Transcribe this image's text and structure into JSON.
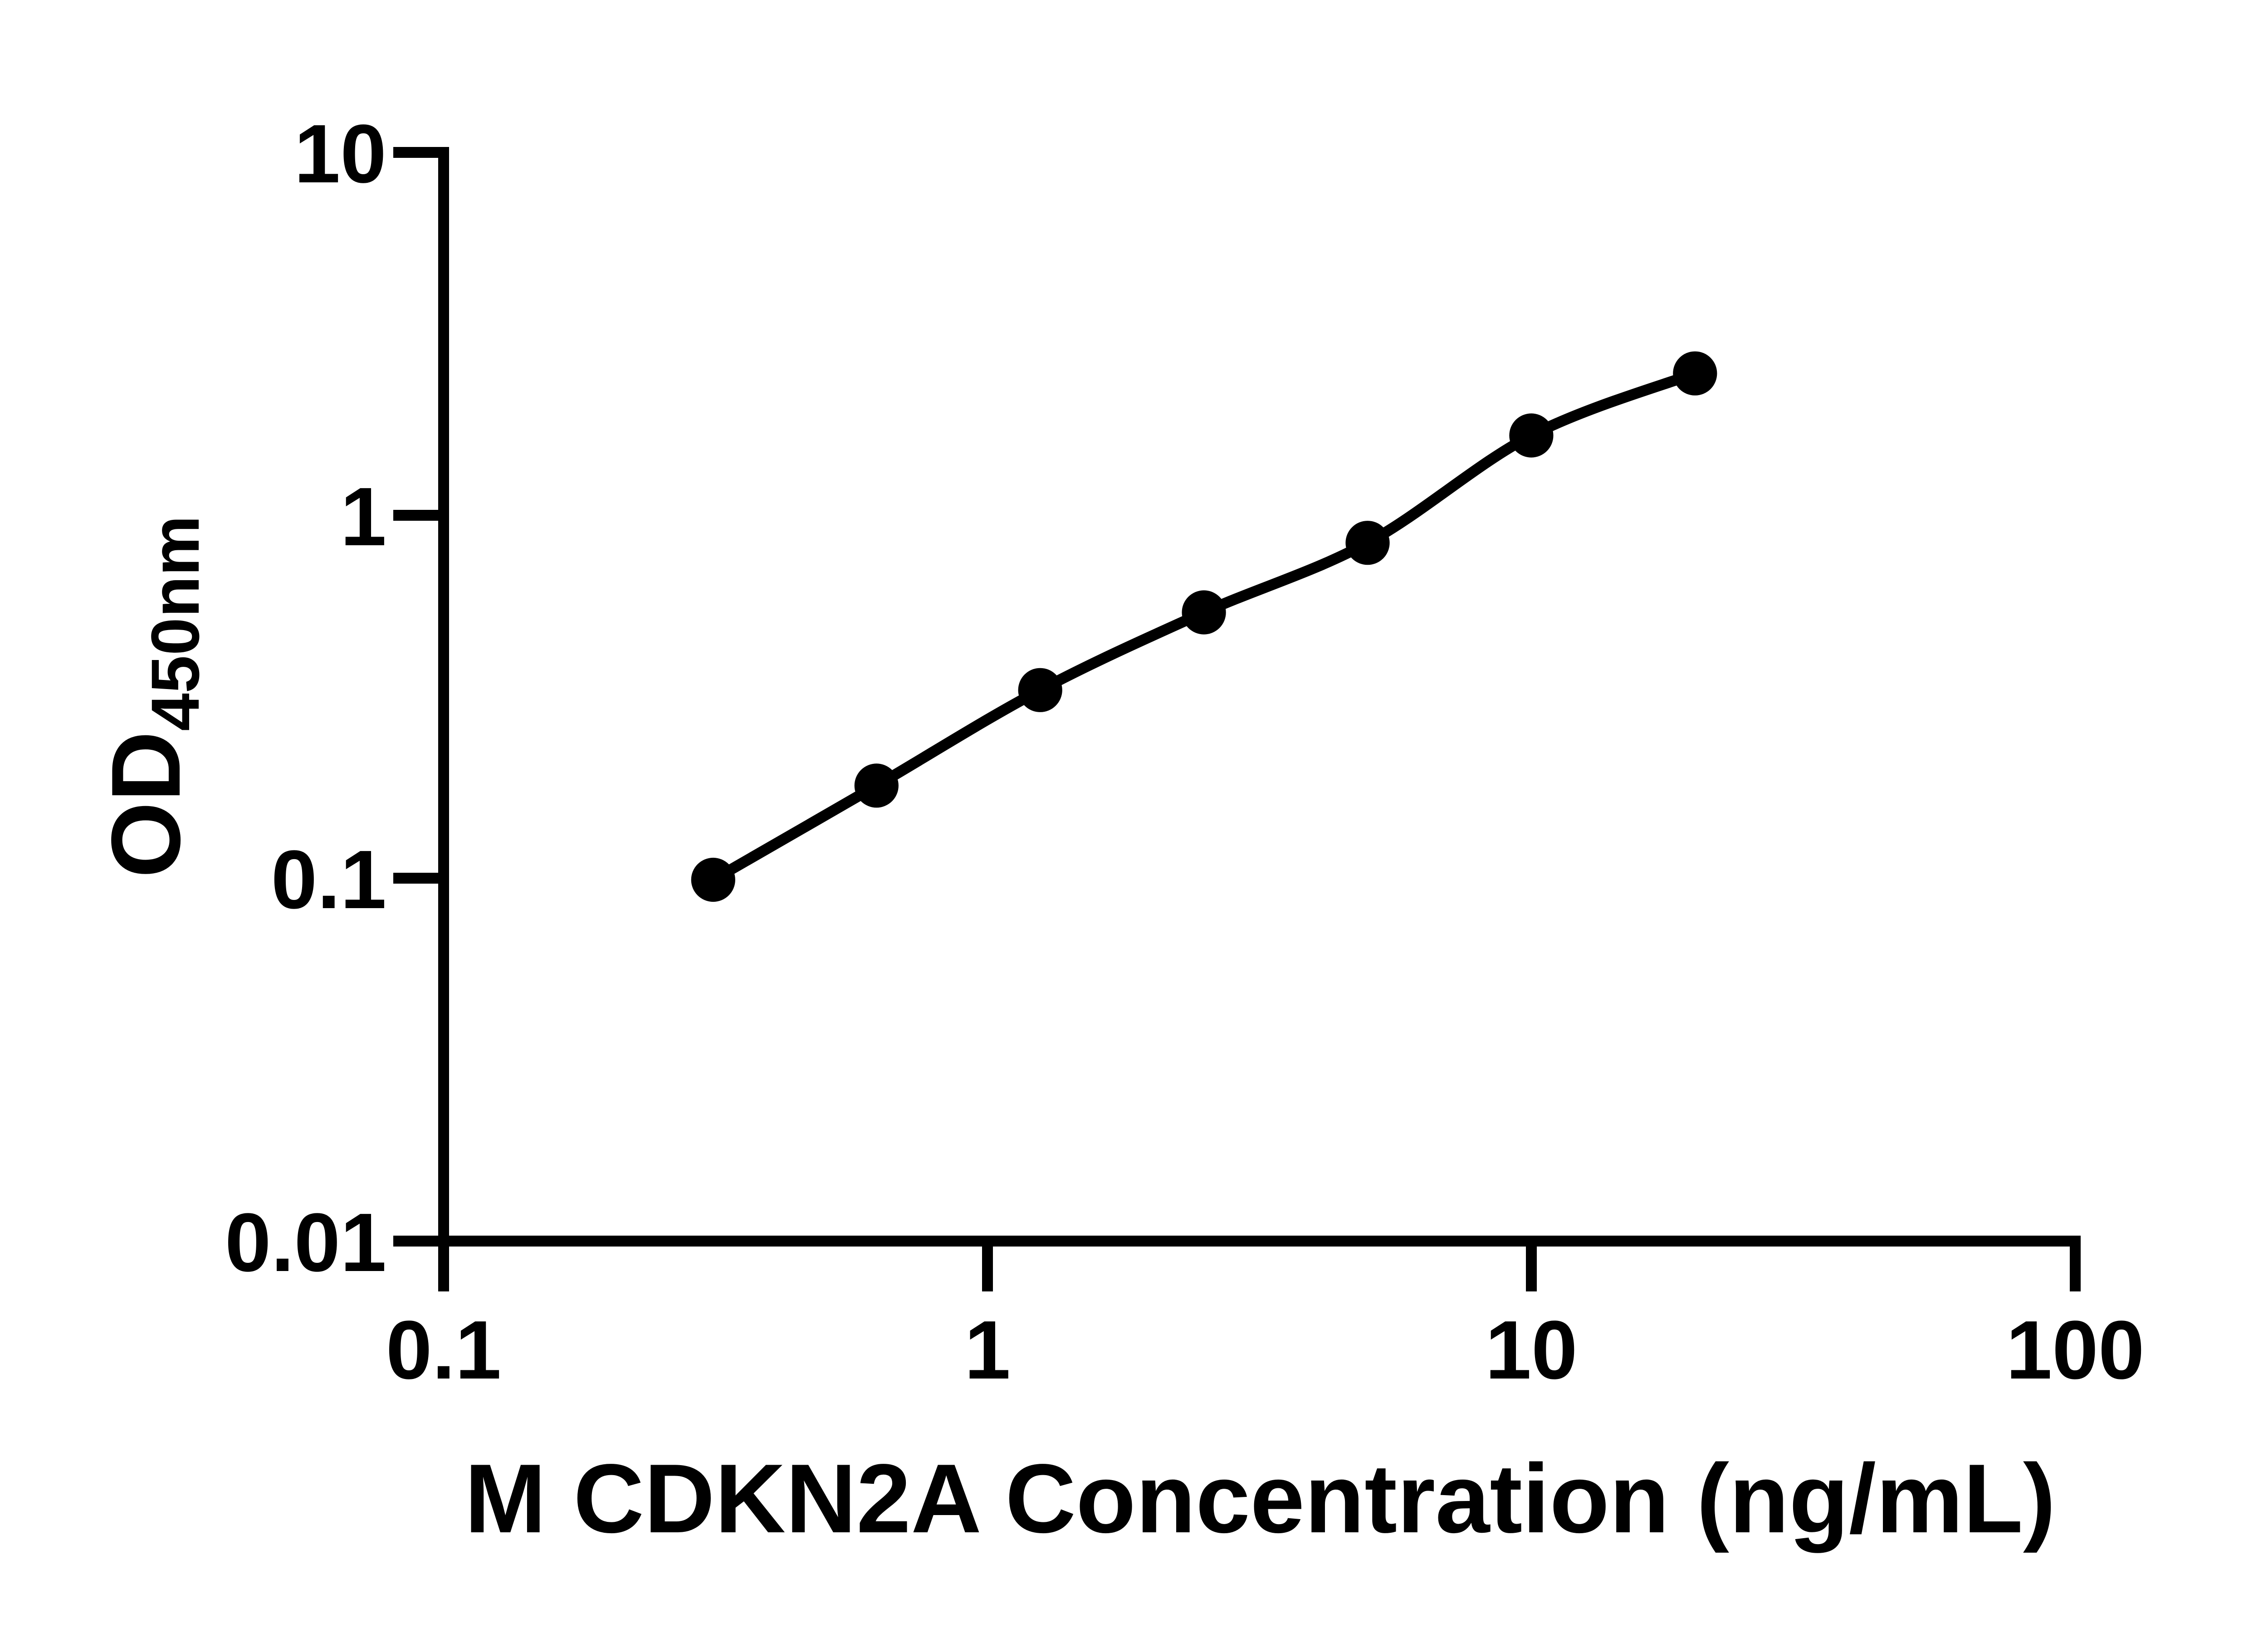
{
  "figure": {
    "background": "#ffffff",
    "foreground": "#000000",
    "marker_color": "#000000"
  },
  "chart_data": {
    "type": "scatter",
    "title": "",
    "xlabel": "M CDKN2A Concentration (ng/mL)",
    "ylabel": "OD450nm",
    "ylabel_main": "OD",
    "ylabel_sub": "450nm",
    "x_scale": "log",
    "y_scale": "log",
    "xlim": [
      0.1,
      100
    ],
    "ylim": [
      0.01,
      10
    ],
    "x_tick_values": [
      0.1,
      1,
      10,
      100
    ],
    "x_tick_labels": [
      "0.1",
      "1",
      "10",
      "100"
    ],
    "y_tick_values": [
      10,
      1,
      0.1,
      0.01
    ],
    "y_tick_labels": [
      "10",
      "1",
      "0.1",
      "0.01"
    ],
    "grid": false,
    "legend": "none",
    "marker": "filled-circle",
    "line": "smooth",
    "x": [
      0.313,
      0.625,
      1.25,
      2.5,
      5,
      10,
      20
    ],
    "y": [
      0.099,
      0.18,
      0.33,
      0.54,
      0.84,
      1.66,
      2.46
    ]
  }
}
